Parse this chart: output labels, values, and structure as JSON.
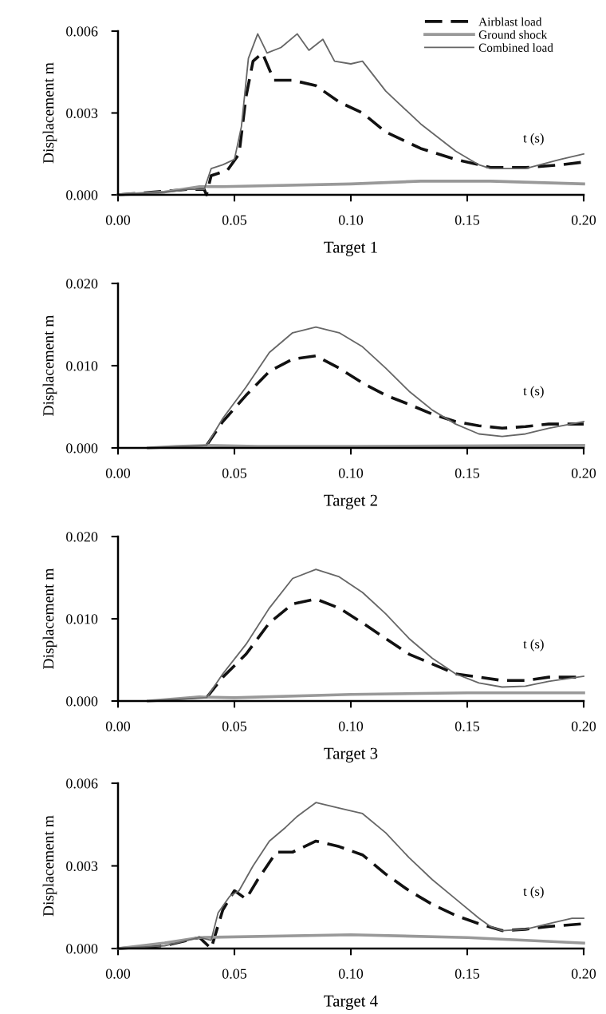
{
  "chart_data": [
    {
      "type": "line",
      "xlabel": "Target 1",
      "ylabel": "Displacement m",
      "annotations": [
        "t (s)"
      ],
      "legend": "top right",
      "grid": false,
      "marker": "none",
      "xlim": [
        0,
        0.2
      ],
      "xticks": [
        {
          "value": 0,
          "label": "0.00"
        },
        {
          "value": 0.05,
          "label": "0.05"
        },
        {
          "value": 0.1,
          "label": "0.10"
        },
        {
          "value": 0.15,
          "label": "0.15"
        },
        {
          "value": 0.2,
          "label": "0.20"
        }
      ],
      "ylim": [
        0,
        0.006
      ],
      "yticks": [
        {
          "value": 0,
          "label": "0.000"
        },
        {
          "value": 0.003,
          "label": "0.003"
        },
        {
          "value": 0.006,
          "label": "0.006"
        }
      ],
      "series": [
        {
          "name": "Airblast load",
          "color": "#111111",
          "line_style": "dashed",
          "x": [
            0,
            0.03,
            0.037,
            0.038,
            0.04,
            0.047,
            0.052,
            0.055,
            0.058,
            0.062,
            0.067,
            0.075,
            0.085,
            0.095,
            0.105,
            0.115,
            0.13,
            0.145,
            0.16,
            0.175,
            0.19,
            0.2
          ],
          "values": [
            0,
            0.0002,
            0.0002,
            0,
            0.0007,
            0.0009,
            0.0015,
            0.0036,
            0.0049,
            0.0052,
            0.0042,
            0.0042,
            0.004,
            0.0034,
            0.003,
            0.0023,
            0.0017,
            0.0013,
            0.001,
            0.001,
            0.0011,
            0.0012
          ]
        },
        {
          "name": "Ground shock",
          "color": "#999999",
          "line_style": "solid",
          "x": [
            0,
            0.02,
            0.035,
            0.045,
            0.1,
            0.13,
            0.16,
            0.2
          ],
          "values": [
            0,
            0.0001,
            0.0003,
            0.0003,
            0.0004,
            0.0005,
            0.0005,
            0.0004
          ]
        },
        {
          "name": "Combined load",
          "color": "#666666",
          "line_style": "solid",
          "x": [
            0,
            0.02,
            0.03,
            0.037,
            0.04,
            0.045,
            0.05,
            0.053,
            0.056,
            0.06,
            0.064,
            0.07,
            0.077,
            0.082,
            0.088,
            0.093,
            0.1,
            0.105,
            0.115,
            0.13,
            0.145,
            0.155,
            0.16,
            0.175,
            0.19,
            0.2
          ],
          "values": [
            0,
            0.0001,
            0.0002,
            0.0002,
            0.00096,
            0.0011,
            0.0013,
            0.0025,
            0.005,
            0.0059,
            0.0052,
            0.0054,
            0.0059,
            0.0053,
            0.0057,
            0.0049,
            0.0048,
            0.0049,
            0.0038,
            0.0026,
            0.0016,
            0.0011,
            0.00096,
            0.00096,
            0.0013,
            0.0015
          ]
        }
      ]
    },
    {
      "type": "line",
      "xlabel": "Target 2",
      "ylabel": "Displacement m",
      "annotations": [
        "t (s)"
      ],
      "grid": false,
      "marker": "none",
      "xlim": [
        0,
        0.2
      ],
      "xticks": [
        {
          "value": 0,
          "label": "0.00"
        },
        {
          "value": 0.05,
          "label": "0.05"
        },
        {
          "value": 0.1,
          "label": "0.10"
        },
        {
          "value": 0.15,
          "label": "0.15"
        },
        {
          "value": 0.2,
          "label": "0.20"
        }
      ],
      "ylim": [
        0,
        0.02
      ],
      "yticks": [
        {
          "value": 0,
          "label": "0.000"
        },
        {
          "value": 0.01,
          "label": "0.010"
        },
        {
          "value": 0.02,
          "label": "0.020"
        }
      ],
      "series": [
        {
          "color": "#111111",
          "line_style": "dashed",
          "x": [
            0.038,
            0.045,
            0.055,
            0.065,
            0.075,
            0.085,
            0.095,
            0.105,
            0.115,
            0.125,
            0.135,
            0.145,
            0.155,
            0.165,
            0.175,
            0.185,
            0.2
          ],
          "values": [
            0.0003,
            0.0032,
            0.0064,
            0.0093,
            0.0108,
            0.0112,
            0.0097,
            0.0079,
            0.0064,
            0.0053,
            0.0041,
            0.0032,
            0.0027,
            0.0024,
            0.0026,
            0.0029,
            0.0029
          ]
        },
        {
          "color": "#999999",
          "line_style": "solid",
          "x": [
            0.013,
            0.025,
            0.038,
            0.06,
            0.1,
            0.2
          ],
          "values": [
            0,
            0.0002,
            0.0003,
            0.0002,
            0.0002,
            0.0003
          ]
        },
        {
          "color": "#666666",
          "line_style": "solid",
          "x": [
            0.013,
            0.038,
            0.045,
            0.055,
            0.065,
            0.075,
            0.085,
            0.095,
            0.105,
            0.115,
            0.125,
            0.135,
            0.145,
            0.155,
            0.165,
            0.175,
            0.185,
            0.2
          ],
          "values": [
            0,
            0.0003,
            0.0036,
            0.0074,
            0.0116,
            0.014,
            0.0147,
            0.014,
            0.0123,
            0.0097,
            0.0069,
            0.0046,
            0.0029,
            0.0017,
            0.0014,
            0.0017,
            0.0024,
            0.0032
          ]
        }
      ]
    },
    {
      "type": "line",
      "xlabel": "Target 3",
      "ylabel": "Displacement m",
      "annotations": [
        "t (s)"
      ],
      "grid": false,
      "marker": "none",
      "xlim": [
        0,
        0.2
      ],
      "xticks": [
        {
          "value": 0,
          "label": "0.00"
        },
        {
          "value": 0.05,
          "label": "0.05"
        },
        {
          "value": 0.1,
          "label": "0.10"
        },
        {
          "value": 0.15,
          "label": "0.15"
        },
        {
          "value": 0.2,
          "label": "0.20"
        }
      ],
      "ylim": [
        0,
        0.02
      ],
      "yticks": [
        {
          "value": 0,
          "label": "0.000"
        },
        {
          "value": 0.01,
          "label": "0.010"
        },
        {
          "value": 0.02,
          "label": "0.020"
        }
      ],
      "series": [
        {
          "color": "#111111",
          "line_style": "dashed",
          "x": [
            0.038,
            0.045,
            0.055,
            0.065,
            0.075,
            0.085,
            0.095,
            0.105,
            0.115,
            0.125,
            0.135,
            0.145,
            0.155,
            0.165,
            0.175,
            0.185,
            0.2
          ],
          "values": [
            0.0004,
            0.0029,
            0.0057,
            0.0095,
            0.0118,
            0.0124,
            0.0113,
            0.0095,
            0.0076,
            0.0057,
            0.0045,
            0.0033,
            0.0029,
            0.0025,
            0.0025,
            0.0029,
            0.0029
          ]
        },
        {
          "color": "#999999",
          "line_style": "solid",
          "x": [
            0.013,
            0.035,
            0.05,
            0.1,
            0.15,
            0.2
          ],
          "values": [
            0,
            0.0005,
            0.0004,
            0.0008,
            0.001,
            0.001
          ]
        },
        {
          "color": "#666666",
          "line_style": "solid",
          "x": [
            0.013,
            0.038,
            0.045,
            0.055,
            0.065,
            0.075,
            0.085,
            0.095,
            0.105,
            0.115,
            0.125,
            0.135,
            0.145,
            0.155,
            0.165,
            0.175,
            0.185,
            0.2
          ],
          "values": [
            0,
            0.0004,
            0.0033,
            0.0069,
            0.0113,
            0.0149,
            0.016,
            0.0151,
            0.0132,
            0.0106,
            0.0076,
            0.0052,
            0.0033,
            0.0022,
            0.0017,
            0.0018,
            0.0024,
            0.003
          ]
        }
      ]
    },
    {
      "type": "line",
      "xlabel": "Target 4",
      "ylabel": "Displacement m",
      "annotations": [
        "t (s)"
      ],
      "grid": false,
      "marker": "none",
      "xlim": [
        0,
        0.2
      ],
      "xticks": [
        {
          "value": 0,
          "label": "0.00"
        },
        {
          "value": 0.05,
          "label": "0.05"
        },
        {
          "value": 0.1,
          "label": "0.10"
        },
        {
          "value": 0.15,
          "label": "0.15"
        },
        {
          "value": 0.2,
          "label": "0.20"
        }
      ],
      "ylim": [
        0,
        0.006
      ],
      "yticks": [
        {
          "value": 0,
          "label": "0.000"
        },
        {
          "value": 0.003,
          "label": "0.003"
        },
        {
          "value": 0.006,
          "label": "0.006"
        }
      ],
      "series": [
        {
          "color": "#111111",
          "line_style": "dashed",
          "x": [
            0,
            0.02,
            0.035,
            0.04,
            0.045,
            0.05,
            0.055,
            0.06,
            0.068,
            0.075,
            0.085,
            0.095,
            0.105,
            0.115,
            0.125,
            0.135,
            0.145,
            0.155,
            0.165,
            0.175,
            0.185,
            0.2
          ],
          "values": [
            0,
            0.0001,
            0.0004,
            0,
            0.0014,
            0.0021,
            0.0018,
            0.0025,
            0.0035,
            0.0035,
            0.0039,
            0.0037,
            0.0034,
            0.0027,
            0.0021,
            0.0016,
            0.0012,
            0.0009,
            0.00065,
            0.0007,
            0.0008,
            0.0009
          ]
        },
        {
          "color": "#999999",
          "line_style": "solid",
          "x": [
            0,
            0.02,
            0.035,
            0.1,
            0.15,
            0.2
          ],
          "values": [
            0,
            0.0002,
            0.0004,
            0.0005,
            0.0004,
            0.0002
          ]
        },
        {
          "color": "#666666",
          "line_style": "solid",
          "x": [
            0,
            0.02,
            0.035,
            0.04,
            0.043,
            0.048,
            0.052,
            0.058,
            0.065,
            0.072,
            0.077,
            0.085,
            0.095,
            0.105,
            0.115,
            0.125,
            0.135,
            0.145,
            0.155,
            0.16,
            0.165,
            0.175,
            0.185,
            0.195,
            0.2
          ],
          "values": [
            0,
            0.0001,
            0.0004,
            0.0003,
            0.0013,
            0.0019,
            0.0021,
            0.003,
            0.0039,
            0.0044,
            0.0048,
            0.0053,
            0.0051,
            0.0049,
            0.0042,
            0.0033,
            0.0025,
            0.0018,
            0.0011,
            0.0008,
            0.00065,
            0.0007,
            0.0009,
            0.0011,
            0.0011
          ]
        }
      ]
    }
  ]
}
